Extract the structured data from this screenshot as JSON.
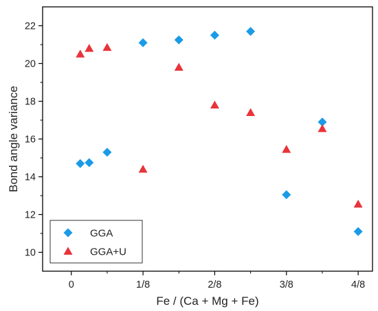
{
  "chart_data": {
    "type": "scatter",
    "xlabel": "Fe / (Ca + Mg + Fe)",
    "ylabel": "Bond angle variance",
    "xlim": [
      -0.05,
      0.525
    ],
    "ylim": [
      9,
      23
    ],
    "x_ticks": [
      {
        "value": 0,
        "label": "0"
      },
      {
        "value": 0.125,
        "label": "1/8"
      },
      {
        "value": 0.25,
        "label": "2/8"
      },
      {
        "value": 0.375,
        "label": "3/8"
      },
      {
        "value": 0.5,
        "label": "4/8"
      }
    ],
    "y_ticks": [
      10,
      12,
      14,
      16,
      18,
      20,
      22
    ],
    "grid": false,
    "legend": "bottom-left",
    "series": [
      {
        "name": "GGA",
        "marker": "diamond",
        "color": "#1a9be6",
        "points": [
          {
            "x": 0.0156,
            "y": 14.7
          },
          {
            "x": 0.0312,
            "y": 14.75
          },
          {
            "x": 0.0625,
            "y": 15.3
          },
          {
            "x": 0.125,
            "y": 21.1
          },
          {
            "x": 0.1875,
            "y": 21.25
          },
          {
            "x": 0.25,
            "y": 21.5
          },
          {
            "x": 0.3125,
            "y": 21.7
          },
          {
            "x": 0.375,
            "y": 13.05
          },
          {
            "x": 0.4375,
            "y": 16.9
          },
          {
            "x": 0.5,
            "y": 11.1
          }
        ]
      },
      {
        "name": "GGA+U",
        "marker": "triangle",
        "color": "#e8343a",
        "points": [
          {
            "x": 0.0156,
            "y": 20.5
          },
          {
            "x": 0.0312,
            "y": 20.8
          },
          {
            "x": 0.0625,
            "y": 20.85
          },
          {
            "x": 0.125,
            "y": 14.4
          },
          {
            "x": 0.1875,
            "y": 19.8
          },
          {
            "x": 0.25,
            "y": 17.8
          },
          {
            "x": 0.3125,
            "y": 17.4
          },
          {
            "x": 0.375,
            "y": 15.45
          },
          {
            "x": 0.4375,
            "y": 16.55
          },
          {
            "x": 0.5,
            "y": 12.55
          }
        ]
      }
    ]
  }
}
